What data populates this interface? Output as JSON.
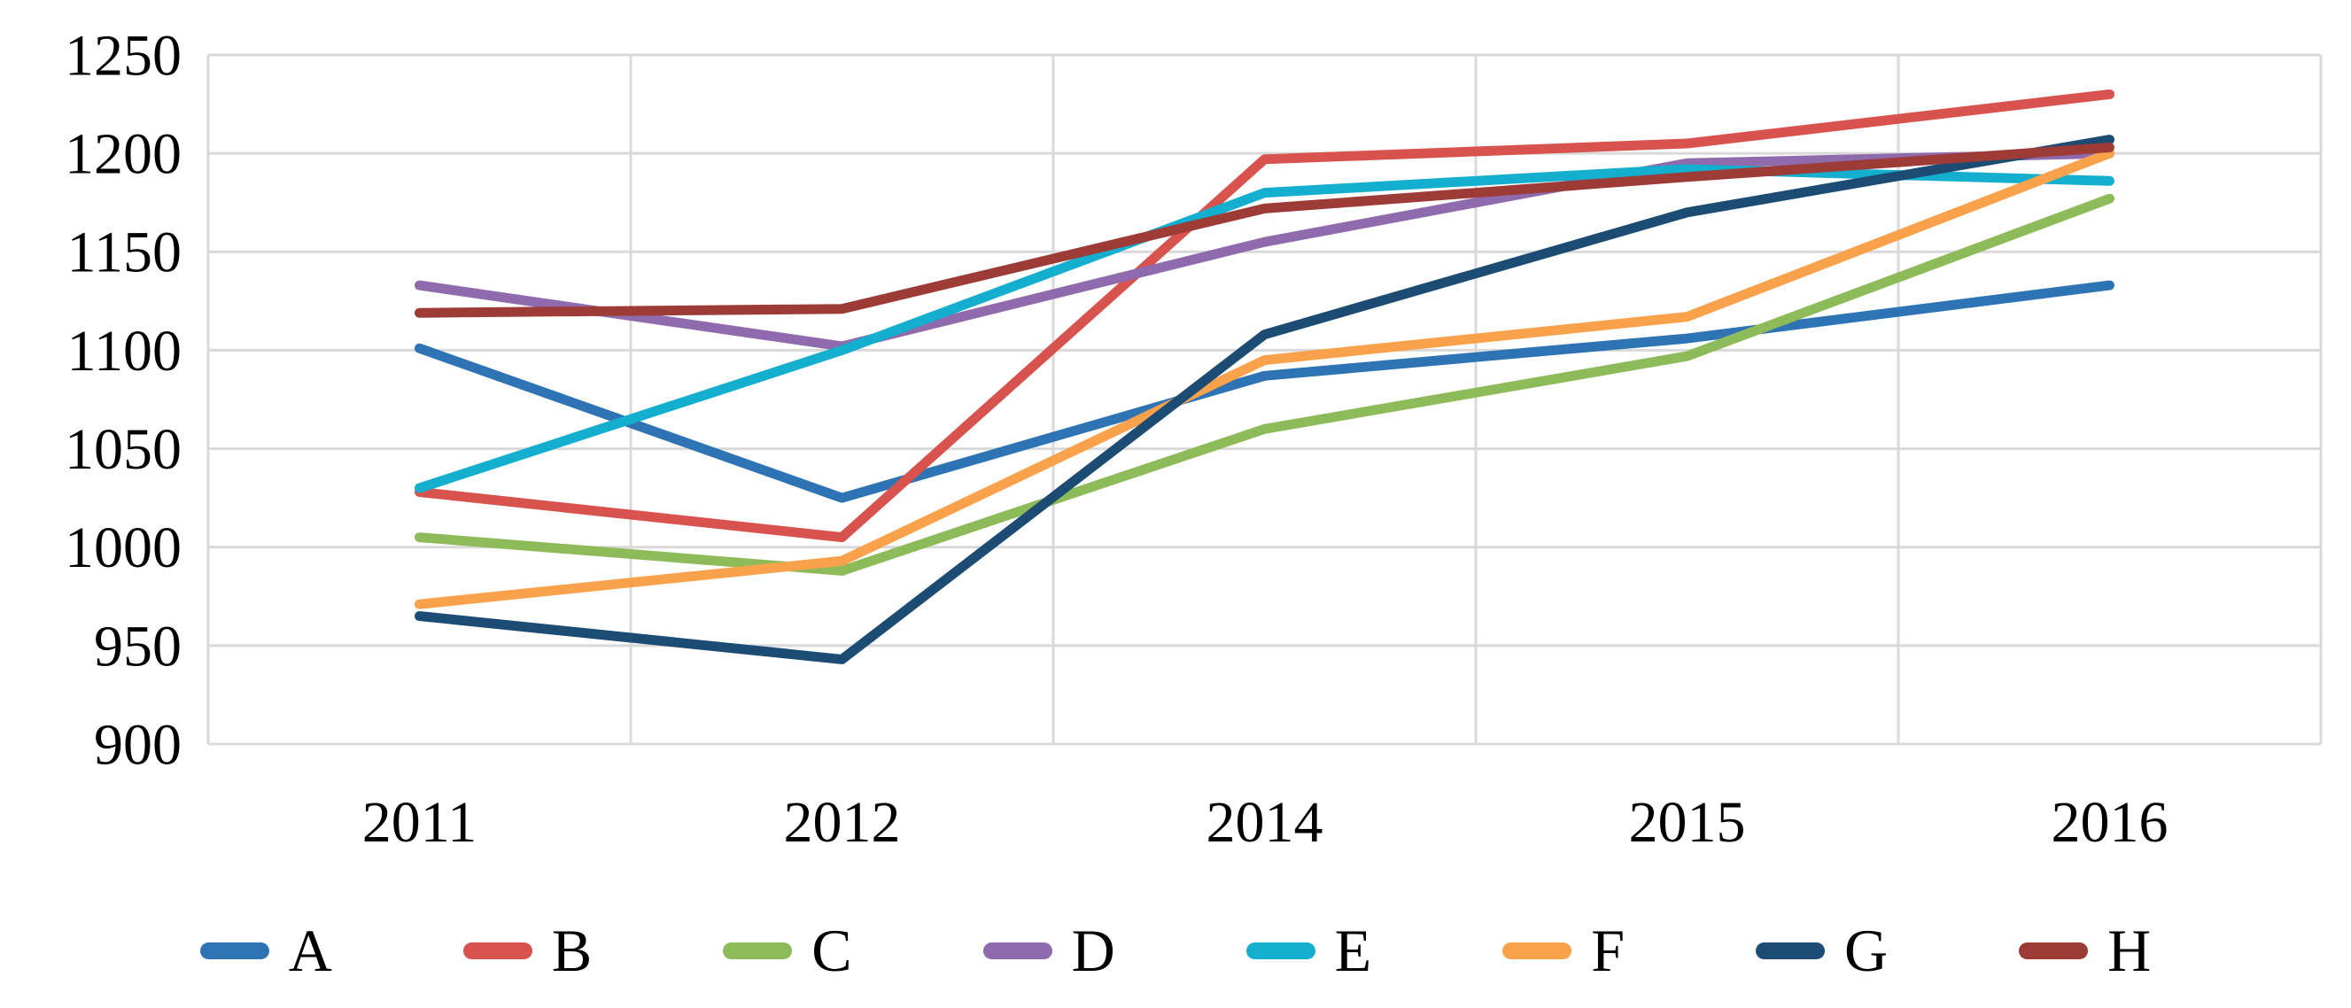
{
  "chart_data": {
    "type": "line",
    "title": "",
    "xlabel": "",
    "ylabel": "",
    "x_labels": [
      "2011",
      "2012",
      "2014",
      "2015",
      "2016"
    ],
    "y_ticks": [
      900,
      950,
      1000,
      1050,
      1100,
      1150,
      1200,
      1250
    ],
    "ylim": [
      900,
      1250
    ],
    "grid": true,
    "gridline_color": "#D9D9D9",
    "axis_text_color": "#000000",
    "legend_position": "bottom",
    "series": [
      {
        "name": "A",
        "color": "#2E74B4",
        "values": [
          1101,
          1025,
          1087,
          1106,
          1133
        ]
      },
      {
        "name": "B",
        "color": "#D9534E",
        "values": [
          1028,
          1005,
          1197,
          1205,
          1230
        ]
      },
      {
        "name": "C",
        "color": "#8EBB59",
        "values": [
          1005,
          988,
          1060,
          1097,
          1177
        ]
      },
      {
        "name": "D",
        "color": "#8F6BAE",
        "values": [
          1133,
          1102,
          1155,
          1195,
          1200
        ]
      },
      {
        "name": "E",
        "color": "#14AECE",
        "values": [
          1030,
          1100,
          1180,
          1192,
          1186
        ]
      },
      {
        "name": "F",
        "color": "#F9A14B",
        "values": [
          971,
          993,
          1095,
          1117,
          1200
        ]
      },
      {
        "name": "G",
        "color": "#1C4C74",
        "values": [
          965,
          943,
          1108,
          1170,
          1207
        ]
      },
      {
        "name": "H",
        "color": "#9D3B36",
        "values": [
          1119,
          1121,
          1172,
          1188,
          1203
        ]
      }
    ]
  }
}
